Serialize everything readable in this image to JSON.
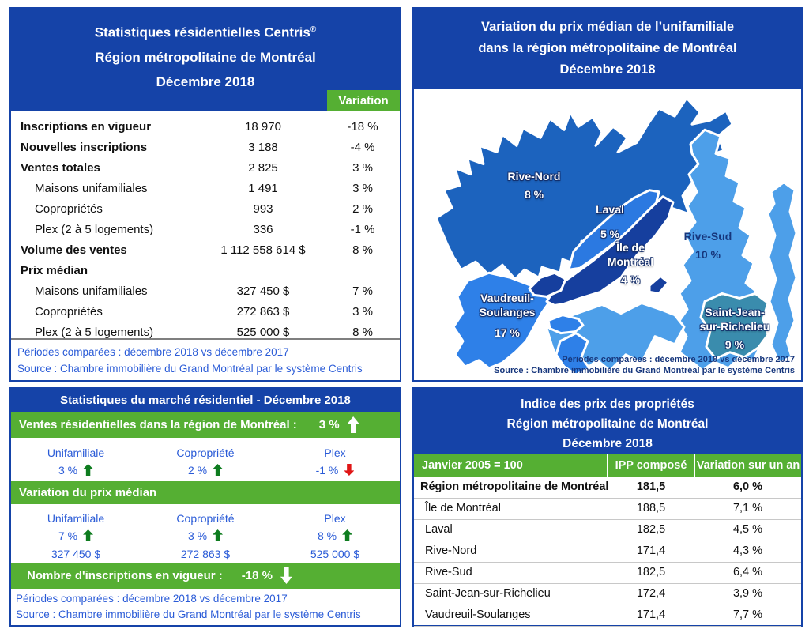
{
  "colors": {
    "header_blue": "#1543A8",
    "green": "#55AF33",
    "link_blue": "#2A5BD7",
    "arrow_up": "#0E7C1F",
    "arrow_down": "#E01616",
    "map_label_navy": "#16367C",
    "map_regions": {
      "rive-nord": "#1C63BE",
      "laval": "#2B79E1",
      "ile-de-montreal": "#163F9E",
      "rive-sud": "#4D9FE9",
      "vaudreuil-soulanges": "#2E80E8",
      "saint-jean": "#3A8CAD"
    }
  },
  "stats": {
    "title_line1": "Statistiques résidentielles Centris",
    "title_reg": "®",
    "title_line2": "Région métropolitaine de Montréal",
    "title_line3": "Décembre 2018",
    "variation_header": "Variation",
    "rows": [
      {
        "label": "Inscriptions en vigueur",
        "value": "18 970",
        "variation": "-18 %",
        "style": "bold"
      },
      {
        "label": "Nouvelles inscriptions",
        "value": "3 188",
        "variation": "-4 %",
        "style": "bold"
      },
      {
        "label": "Ventes totales",
        "value": "2 825",
        "variation": "3 %",
        "style": "bold"
      },
      {
        "label": "Maisons unifamiliales",
        "value": "1 491",
        "variation": "3 %",
        "style": "indent"
      },
      {
        "label": "Copropriétés",
        "value": "993",
        "variation": "2 %",
        "style": "indent"
      },
      {
        "label": "Plex (2 à 5 logements)",
        "value": "336",
        "variation": "-1 %",
        "style": "indent"
      },
      {
        "label": "Volume des ventes",
        "value": "1 112 558 614 $",
        "variation": "8 %",
        "style": "bold"
      },
      {
        "label": "Prix médian",
        "value": "",
        "variation": "",
        "style": "bold"
      },
      {
        "label": "Maisons unifamiliales",
        "value": "327 450 $",
        "variation": "7 %",
        "style": "indent"
      },
      {
        "label": "Copropriétés",
        "value": "272 863 $",
        "variation": "3 %",
        "style": "indent"
      },
      {
        "label": "Plex (2 à 5 logements)",
        "value": "525 000 $",
        "variation": "8 %",
        "style": "indent"
      }
    ],
    "footer": [
      "Périodes comparées : décembre 2018 vs décembre 2017",
      "Source : Chambre immobilière du Grand Montréal par le système Centris"
    ]
  },
  "map": {
    "title_lines": [
      "Variation du prix médian de l’unifamiliale",
      "dans la région métropolitaine de Montréal",
      "Décembre 2018"
    ],
    "regions": [
      {
        "key": "rive-nord",
        "name_lines": [
          "Rive-Nord"
        ],
        "value": "8 %"
      },
      {
        "key": "laval",
        "name_lines": [
          "Laval"
        ],
        "value": "5 %"
      },
      {
        "key": "ile-de-montreal",
        "name_lines": [
          "Île de",
          "Montréal"
        ],
        "value": "4 %"
      },
      {
        "key": "rive-sud",
        "name_lines": [
          "Rive-Sud"
        ],
        "value": "10 %",
        "label_style": "navy"
      },
      {
        "key": "vaudreuil-soulanges",
        "name_lines": [
          "Vaudreuil-",
          "Soulanges"
        ],
        "value": "17 %"
      },
      {
        "key": "saint-jean",
        "name_lines": [
          "Saint-Jean-",
          "sur-Richelieu"
        ],
        "value": "9 %"
      }
    ],
    "note": [
      "Périodes comparées : décembre 2018 vs décembre 2017",
      "Source : Chambre immobilière du Grand Montréal par le système Centris"
    ]
  },
  "market": {
    "title": "Statistiques du marché résidentiel -  Décembre 2018",
    "sales": {
      "label": "Ventes résidentielles dans la région de Montréal :",
      "value": "3 %",
      "arrow": "up"
    },
    "sales_columns": [
      {
        "label": "Unifamiliale",
        "pct": "3 %",
        "dir": "up"
      },
      {
        "label": "Copropriété",
        "pct": "2 %",
        "dir": "up"
      },
      {
        "label": "Plex",
        "pct": "-1 %",
        "dir": "down"
      }
    ],
    "price_header": "Variation du prix médian",
    "price_columns": [
      {
        "label": "Unifamiliale",
        "pct": "7 %",
        "dir": "up",
        "price": "327 450 $"
      },
      {
        "label": "Copropriété",
        "pct": "3 %",
        "dir": "up",
        "price": "272 863 $"
      },
      {
        "label": "Plex",
        "pct": "8 %",
        "dir": "up",
        "price": "525 000 $"
      }
    ],
    "inscriptions": {
      "label": "Nombre d'inscriptions en vigueur :",
      "value": "-18 %",
      "arrow": "down"
    },
    "footer": [
      "Périodes comparées : décembre 2018 vs décembre 2017",
      "Source : Chambre immobilière du Grand Montréal par le système Centris"
    ]
  },
  "ipp": {
    "title_lines": [
      "Indice des prix des propriétés",
      "Région métropolitaine de Montréal",
      "Décembre 2018"
    ],
    "columns": [
      "Janvier 2005 = 100",
      "IPP composé",
      "Variation sur un an"
    ],
    "rows": [
      {
        "region": "Région métropolitaine de Montréal",
        "ipp": "181,5",
        "variation": "6,0 %",
        "style": "bold"
      },
      {
        "region": "Île de Montréal",
        "ipp": "188,5",
        "variation": "7,1 %",
        "style": ""
      },
      {
        "region": "Laval",
        "ipp": "182,5",
        "variation": "4,5 %",
        "style": ""
      },
      {
        "region": "Rive-Nord",
        "ipp": "171,4",
        "variation": "4,3 %",
        "style": ""
      },
      {
        "region": "Rive-Sud",
        "ipp": "182,5",
        "variation": "6,4 %",
        "style": ""
      },
      {
        "region": "Saint-Jean-sur-Richelieu",
        "ipp": "172,4",
        "variation": "3,9 %",
        "style": ""
      },
      {
        "region": "Vaudreuil-Soulanges",
        "ipp": "171,4",
        "variation": "7,7 %",
        "style": ""
      }
    ]
  }
}
